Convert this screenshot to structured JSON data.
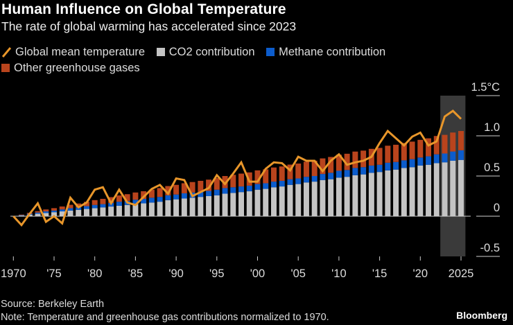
{
  "header": {
    "title": "Human Influence on Global Temperature",
    "subtitle": "The rate of global warming has accelerated since 2023"
  },
  "legend": [
    {
      "label": "Global mean temperature",
      "color": "#e8962a",
      "kind": "line"
    },
    {
      "label": "CO2 contribution",
      "color": "#c4c4c4",
      "kind": "box"
    },
    {
      "label": "Methane contribution",
      "color": "#0c5ccc",
      "kind": "box"
    },
    {
      "label": "Other greenhouse gases",
      "color": "#b9441d",
      "kind": "box"
    }
  ],
  "footer": {
    "source": "Source: Berkeley Earth",
    "note": "Note: Temperature and greenhouse gas contributions normalized to 1970.",
    "brand": "Bloomberg"
  },
  "chart_data": {
    "type": "bar",
    "stacked": true,
    "title": "Human Influence on Global Temperature",
    "subtitle": "The rate of global warming has accelerated since 2023",
    "x": [
      1970,
      1971,
      1972,
      1973,
      1974,
      1975,
      1976,
      1977,
      1978,
      1979,
      1980,
      1981,
      1982,
      1983,
      1984,
      1985,
      1986,
      1987,
      1988,
      1989,
      1990,
      1991,
      1992,
      1993,
      1994,
      1995,
      1996,
      1997,
      1998,
      1999,
      2000,
      2001,
      2002,
      2003,
      2004,
      2005,
      2006,
      2007,
      2008,
      2009,
      2010,
      2011,
      2012,
      2013,
      2014,
      2015,
      2016,
      2017,
      2018,
      2019,
      2020,
      2021,
      2022,
      2023,
      2024,
      2025
    ],
    "x_ticks": [
      {
        "value": 1970,
        "label": "1970"
      },
      {
        "value": 1975,
        "label": "'75"
      },
      {
        "value": 1980,
        "label": "'80"
      },
      {
        "value": 1985,
        "label": "'85"
      },
      {
        "value": 1990,
        "label": "'90"
      },
      {
        "value": 1995,
        "label": "'95"
      },
      {
        "value": 2000,
        "label": "'00"
      },
      {
        "value": 2005,
        "label": "'05"
      },
      {
        "value": 2010,
        "label": "'10"
      },
      {
        "value": 2015,
        "label": "'15"
      },
      {
        "value": 2020,
        "label": "'20"
      },
      {
        "value": 2025,
        "label": "2025"
      }
    ],
    "y_ticks": [
      {
        "value": 1.5,
        "label": "1.5°C"
      },
      {
        "value": 1.0,
        "label": "1.0"
      },
      {
        "value": 0.5,
        "label": "0.5"
      },
      {
        "value": 0,
        "label": "0"
      },
      {
        "value": -0.5,
        "label": "-0.5"
      }
    ],
    "ylim": [
      -0.5,
      1.5
    ],
    "y_axis_position": "right",
    "highlight_range": [
      2023,
      2025
    ],
    "series": [
      {
        "name": "CO2 contribution",
        "kind": "bar",
        "color": "#c4c4c4",
        "values": [
          0.0,
          0.01,
          0.02,
          0.03,
          0.04,
          0.05,
          0.06,
          0.07,
          0.08,
          0.09,
          0.1,
          0.11,
          0.12,
          0.13,
          0.14,
          0.15,
          0.16,
          0.17,
          0.18,
          0.2,
          0.21,
          0.22,
          0.23,
          0.24,
          0.25,
          0.26,
          0.28,
          0.29,
          0.3,
          0.31,
          0.33,
          0.34,
          0.36,
          0.37,
          0.39,
          0.4,
          0.42,
          0.43,
          0.45,
          0.46,
          0.48,
          0.49,
          0.51,
          0.52,
          0.54,
          0.55,
          0.57,
          0.58,
          0.6,
          0.61,
          0.63,
          0.64,
          0.66,
          0.67,
          0.69,
          0.7
        ]
      },
      {
        "name": "Methane contribution",
        "kind": "bar",
        "color": "#0c5ccc",
        "values": [
          0.0,
          0.005,
          0.01,
          0.015,
          0.02,
          0.02,
          0.025,
          0.03,
          0.03,
          0.035,
          0.04,
          0.04,
          0.045,
          0.05,
          0.05,
          0.055,
          0.055,
          0.06,
          0.06,
          0.06,
          0.06,
          0.065,
          0.065,
          0.065,
          0.065,
          0.07,
          0.07,
          0.07,
          0.07,
          0.07,
          0.07,
          0.07,
          0.07,
          0.07,
          0.07,
          0.07,
          0.07,
          0.07,
          0.075,
          0.08,
          0.085,
          0.085,
          0.09,
          0.09,
          0.09,
          0.09,
          0.095,
          0.095,
          0.095,
          0.1,
          0.1,
          0.105,
          0.11,
          0.11,
          0.115,
          0.12
        ]
      },
      {
        "name": "Other greenhouse gases",
        "kind": "bar",
        "color": "#b9441d",
        "values": [
          0.0,
          0.006,
          0.012,
          0.018,
          0.024,
          0.03,
          0.036,
          0.042,
          0.048,
          0.054,
          0.06,
          0.066,
          0.072,
          0.078,
          0.084,
          0.09,
          0.096,
          0.1,
          0.11,
          0.115,
          0.12,
          0.125,
          0.13,
          0.135,
          0.14,
          0.145,
          0.15,
          0.155,
          0.16,
          0.165,
          0.17,
          0.173,
          0.176,
          0.179,
          0.182,
          0.185,
          0.188,
          0.191,
          0.194,
          0.197,
          0.2,
          0.202,
          0.204,
          0.206,
          0.208,
          0.21,
          0.212,
          0.214,
          0.216,
          0.218,
          0.22,
          0.224,
          0.228,
          0.232,
          0.236,
          0.24
        ]
      },
      {
        "name": "Global mean temperature",
        "kind": "line",
        "color": "#e8962a",
        "values": [
          0.0,
          -0.11,
          0.03,
          0.16,
          -0.07,
          0.0,
          -0.09,
          0.23,
          0.11,
          0.17,
          0.33,
          0.36,
          0.16,
          0.33,
          0.17,
          0.14,
          0.24,
          0.34,
          0.39,
          0.28,
          0.47,
          0.45,
          0.25,
          0.3,
          0.35,
          0.51,
          0.4,
          0.53,
          0.67,
          0.43,
          0.43,
          0.59,
          0.67,
          0.66,
          0.57,
          0.74,
          0.69,
          0.69,
          0.56,
          0.69,
          0.77,
          0.64,
          0.67,
          0.69,
          0.74,
          0.91,
          1.06,
          0.97,
          0.88,
          0.99,
          1.04,
          0.88,
          0.93,
          1.24,
          1.31,
          1.21
        ]
      }
    ]
  }
}
